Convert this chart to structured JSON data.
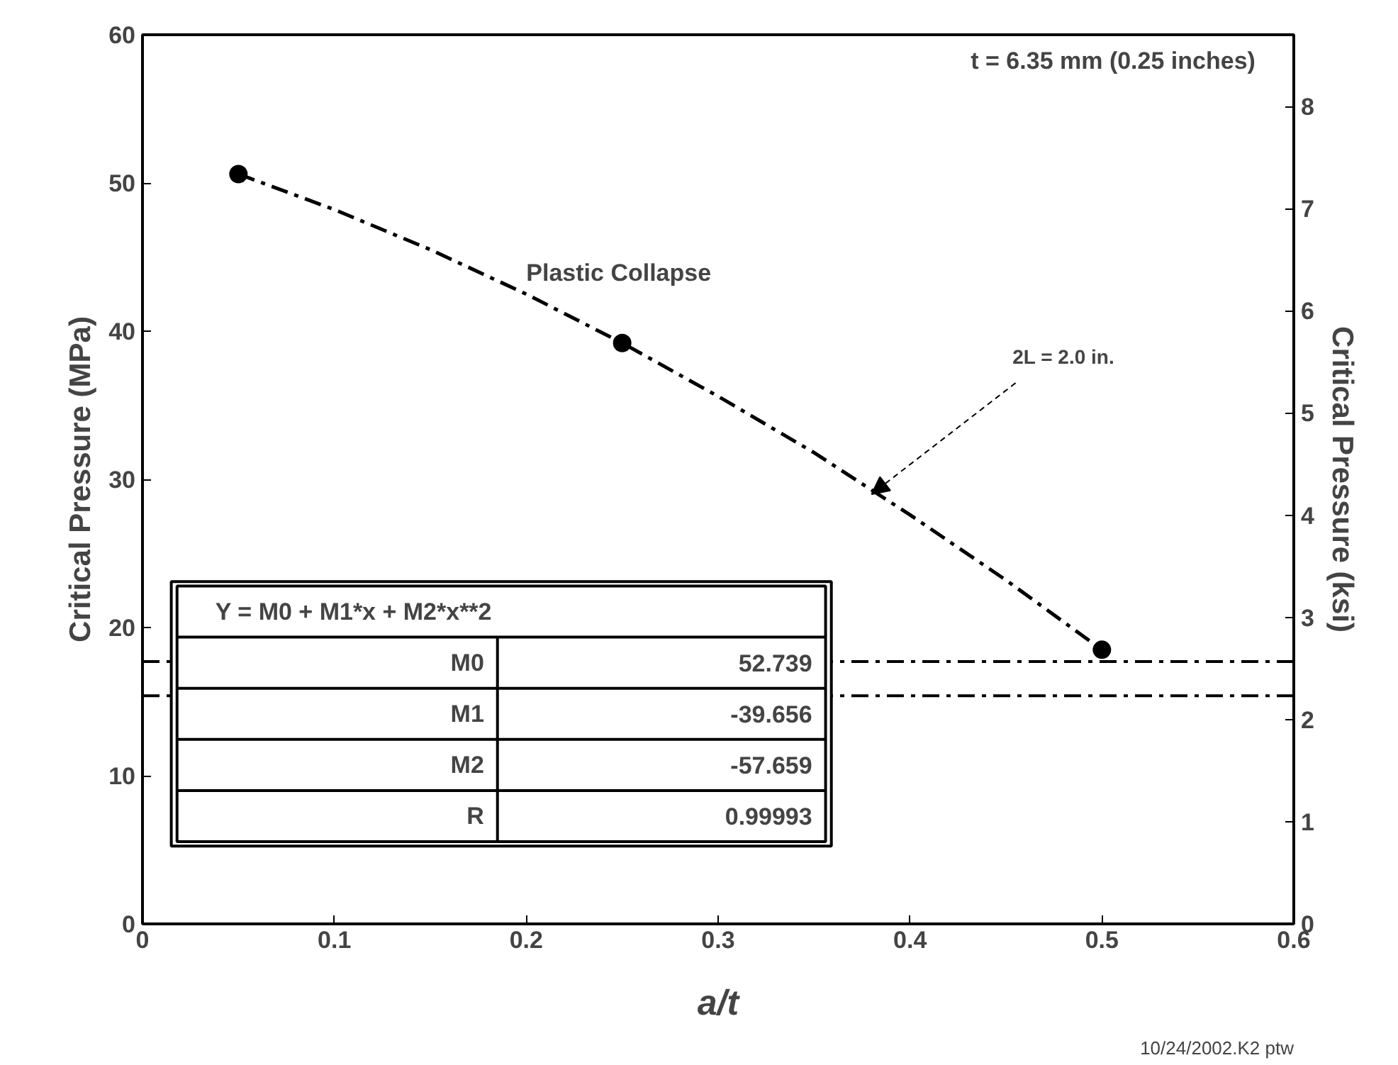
{
  "chart_data": {
    "type": "scatter",
    "xlabel": "a/t",
    "ylabel": "Critical Pressure (MPa)",
    "y2label": "Critical Pressure (ksi)",
    "xlim": [
      0,
      0.6
    ],
    "xticks": [
      0,
      0.1,
      0.2,
      0.3,
      0.4,
      0.5,
      0.6
    ],
    "ylim": [
      0,
      60
    ],
    "yticks": [
      0,
      10,
      20,
      30,
      40,
      50,
      60
    ],
    "y2lim": [
      0,
      8.702
    ],
    "y2ticks": [
      0,
      1,
      2,
      3,
      4,
      5,
      6,
      7,
      8
    ],
    "grid": false,
    "series": [
      {
        "marker": "circle",
        "color": "#000000",
        "x": [
          0.05,
          0.25,
          0.5
        ],
        "values": [
          50.6,
          39.2,
          18.5
        ]
      },
      {
        "type": "line",
        "marker": "none",
        "line_style": "dashed",
        "color": "#000000",
        "x": [
          0.05,
          0.1,
          0.15,
          0.2,
          0.25,
          0.3,
          0.35,
          0.4,
          0.45,
          0.5
        ],
        "values": [
          50.6,
          48.2,
          45.5,
          42.5,
          39.2,
          35.6,
          31.8,
          27.6,
          23.2,
          18.5
        ]
      }
    ],
    "ref_lines": [
      {
        "axis": "y",
        "value": 17.7,
        "label": null,
        "color": "#000000",
        "line_style": "dashed"
      },
      {
        "axis": "y",
        "value": 15.4,
        "label": null,
        "color": "#000000",
        "line_style": "dashed"
      }
    ],
    "annotations": [
      "t = 6.35 mm (0.25 inches)",
      {
        "text": "Plastic Collapse",
        "x": 0.2,
        "y": 43
      },
      {
        "text": "2L = 2.0 in.",
        "x": 0.38,
        "y": 29
      },
      "10/24/2002.K2 ptw",
      "Y = M0 + M1*x + M2*x**2",
      "M0",
      "52.739",
      "M1",
      "-39.656",
      "M2",
      "-57.659",
      "R",
      "0.99993"
    ]
  }
}
